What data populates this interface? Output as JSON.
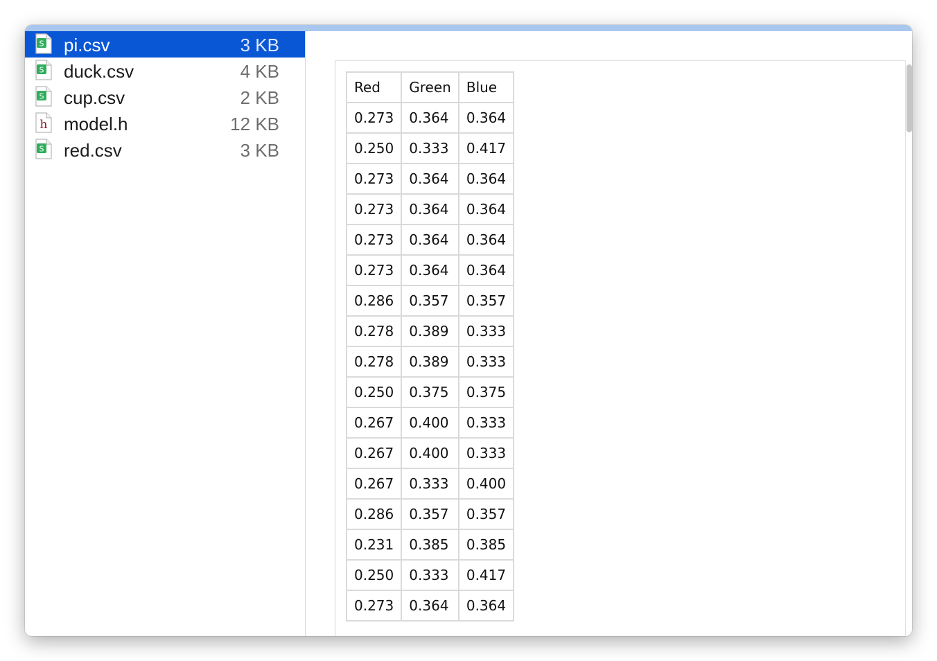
{
  "files": [
    {
      "name": "pi.csv",
      "size": "3 KB",
      "icon": "spreadsheet-icon",
      "selected": true
    },
    {
      "name": "duck.csv",
      "size": "4 KB",
      "icon": "spreadsheet-icon",
      "selected": false
    },
    {
      "name": "cup.csv",
      "size": "2 KB",
      "icon": "spreadsheet-icon",
      "selected": false
    },
    {
      "name": "model.h",
      "size": "12 KB",
      "icon": "header-file-icon",
      "selected": false
    },
    {
      "name": "red.csv",
      "size": "3 KB",
      "icon": "spreadsheet-icon",
      "selected": false
    }
  ],
  "table": {
    "headers": [
      "Red",
      "Green",
      "Blue"
    ],
    "rows": [
      [
        "0.273",
        "0.364",
        "0.364"
      ],
      [
        "0.250",
        "0.333",
        "0.417"
      ],
      [
        "0.273",
        "0.364",
        "0.364"
      ],
      [
        "0.273",
        "0.364",
        "0.364"
      ],
      [
        "0.273",
        "0.364",
        "0.364"
      ],
      [
        "0.273",
        "0.364",
        "0.364"
      ],
      [
        "0.286",
        "0.357",
        "0.357"
      ],
      [
        "0.278",
        "0.389",
        "0.333"
      ],
      [
        "0.278",
        "0.389",
        "0.333"
      ],
      [
        "0.250",
        "0.375",
        "0.375"
      ],
      [
        "0.267",
        "0.400",
        "0.333"
      ],
      [
        "0.267",
        "0.400",
        "0.333"
      ],
      [
        "0.267",
        "0.333",
        "0.400"
      ],
      [
        "0.286",
        "0.357",
        "0.357"
      ],
      [
        "0.231",
        "0.385",
        "0.385"
      ],
      [
        "0.250",
        "0.333",
        "0.417"
      ],
      [
        "0.273",
        "0.364",
        "0.364"
      ]
    ]
  },
  "colors": {
    "selection": "#0a57d6",
    "spreadsheet_icon": "#2fae5c",
    "header_icon_letter": "#8b1a2a",
    "titlebar_accent": "#a9c6ee"
  }
}
